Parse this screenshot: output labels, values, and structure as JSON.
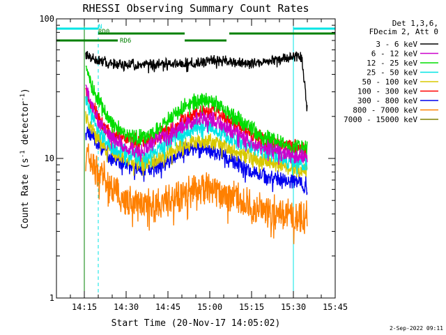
{
  "chart_data": {
    "type": "line",
    "title": "RHESSI Observing Summary Count Rates",
    "xlabel": "Start Time (20-Nov-17 14:05:02)",
    "ylabel": "Count Rate (s⁻¹ detector⁻¹)",
    "ylabel_parts": [
      "Count Rate (s",
      "-1",
      " detector",
      "-1",
      ")"
    ],
    "y_scale": "log",
    "ylim": [
      1,
      100
    ],
    "xlim_minutes": [
      0,
      100
    ],
    "x_tick_labels": [
      "14:15",
      "14:30",
      "14:45",
      "15:00",
      "15:15",
      "15:30",
      "15:45"
    ],
    "x_tick_minutes": [
      10,
      25,
      40,
      55,
      70,
      85,
      100
    ],
    "y_tick_labels": [
      "1",
      "10",
      "100"
    ],
    "y_tick_values": [
      1,
      10,
      100
    ],
    "legend_position": "right",
    "legend_header": [
      "Det 1,3,6,",
      "FDecim 2, Att 0"
    ],
    "footer_date": "2-Sep-2022 09:11",
    "flags": [
      {
        "name": "N",
        "color": "#00e5e5",
        "segments": [
          [
            0,
            15
          ],
          [
            85,
            100
          ]
        ],
        "label_at": 15
      },
      {
        "name": "RD0",
        "color": "#008000",
        "segments": [
          [
            15,
            46
          ],
          [
            62,
            100
          ]
        ],
        "label_at": 15
      },
      {
        "name": "RD6",
        "color": "#008000",
        "segments": [
          [
            0,
            22
          ],
          [
            46,
            61
          ]
        ],
        "label_at": 22
      }
    ],
    "vlines": [
      {
        "t": 0,
        "color": "#00e5e5",
        "style": "solid"
      },
      {
        "t": 10,
        "color": "#008000",
        "style": "solid"
      },
      {
        "t": 15,
        "color": "#00e5e5",
        "style": "dashed"
      },
      {
        "t": 85,
        "color": "#00e5e5",
        "style": "solid"
      },
      {
        "t": 100,
        "color": "#00e5e5",
        "style": "dashed"
      }
    ],
    "series": [
      {
        "name": "3 - 6 keV",
        "color": "#000000",
        "points": [
          [
            10.5,
            55
          ],
          [
            13,
            52
          ],
          [
            16,
            50
          ],
          [
            20,
            48
          ],
          [
            25,
            47
          ],
          [
            30,
            47
          ],
          [
            35,
            47
          ],
          [
            40,
            48
          ],
          [
            45,
            48
          ],
          [
            50,
            48
          ],
          [
            55,
            50
          ],
          [
            60,
            50
          ],
          [
            65,
            49
          ],
          [
            70,
            48
          ],
          [
            75,
            49
          ],
          [
            80,
            51
          ],
          [
            85,
            54
          ],
          [
            88,
            53
          ],
          [
            90,
            22
          ]
        ]
      },
      {
        "name": "6 - 12 keV",
        "color": "#cc00cc",
        "points": [
          [
            10.5,
            32
          ],
          [
            13,
            24
          ],
          [
            16,
            17
          ],
          [
            20,
            14
          ],
          [
            25,
            12
          ],
          [
            30,
            11
          ],
          [
            35,
            13
          ],
          [
            40,
            15
          ],
          [
            45,
            17
          ],
          [
            50,
            19
          ],
          [
            55,
            19
          ],
          [
            60,
            17
          ],
          [
            65,
            15
          ],
          [
            70,
            13
          ],
          [
            75,
            12
          ],
          [
            80,
            11
          ],
          [
            85,
            10.5
          ],
          [
            90,
            10
          ]
        ]
      },
      {
        "name": "12 - 25 keV",
        "color": "#00dd00",
        "points": [
          [
            10.5,
            45
          ],
          [
            13,
            32
          ],
          [
            16,
            24
          ],
          [
            20,
            18
          ],
          [
            25,
            15
          ],
          [
            30,
            14
          ],
          [
            35,
            15
          ],
          [
            40,
            19
          ],
          [
            45,
            23
          ],
          [
            50,
            26
          ],
          [
            55,
            26
          ],
          [
            60,
            23
          ],
          [
            65,
            19
          ],
          [
            70,
            16
          ],
          [
            75,
            14
          ],
          [
            80,
            13
          ],
          [
            85,
            12
          ],
          [
            90,
            12
          ]
        ]
      },
      {
        "name": "25 - 50 keV",
        "color": "#00e5e5",
        "points": [
          [
            10.5,
            26
          ],
          [
            13,
            20
          ],
          [
            16,
            15
          ],
          [
            20,
            12
          ],
          [
            25,
            11
          ],
          [
            30,
            10
          ],
          [
            35,
            11
          ],
          [
            40,
            13
          ],
          [
            45,
            15
          ],
          [
            50,
            17
          ],
          [
            55,
            17
          ],
          [
            60,
            15
          ],
          [
            65,
            13
          ],
          [
            70,
            12
          ],
          [
            75,
            11
          ],
          [
            80,
            10
          ],
          [
            85,
            9.5
          ],
          [
            90,
            9
          ]
        ]
      },
      {
        "name": "50 - 100 keV",
        "color": "#d8c800",
        "points": [
          [
            10.5,
            20
          ],
          [
            13,
            16
          ],
          [
            16,
            13
          ],
          [
            20,
            11
          ],
          [
            25,
            10
          ],
          [
            30,
            9
          ],
          [
            35,
            9.5
          ],
          [
            40,
            11
          ],
          [
            45,
            12.5
          ],
          [
            50,
            13.5
          ],
          [
            55,
            13.5
          ],
          [
            60,
            12.5
          ],
          [
            65,
            11
          ],
          [
            70,
            10
          ],
          [
            75,
            9.5
          ],
          [
            80,
            9
          ],
          [
            85,
            8.5
          ],
          [
            90,
            8.5
          ]
        ]
      },
      {
        "name": "100 - 300 keV",
        "color": "#ff0000",
        "points": [
          [
            10.5,
            30
          ],
          [
            13,
            24
          ],
          [
            16,
            18
          ],
          [
            20,
            15
          ],
          [
            25,
            14
          ],
          [
            30,
            13
          ],
          [
            35,
            14
          ],
          [
            40,
            16
          ],
          [
            45,
            18.5
          ],
          [
            50,
            21
          ],
          [
            55,
            22
          ],
          [
            60,
            20
          ],
          [
            65,
            17
          ],
          [
            70,
            15
          ],
          [
            75,
            13.5
          ],
          [
            80,
            12.5
          ],
          [
            85,
            12
          ],
          [
            90,
            12
          ]
        ]
      },
      {
        "name": "300 - 800 keV",
        "color": "#0000ee",
        "points": [
          [
            10.5,
            17
          ],
          [
            13,
            14
          ],
          [
            16,
            12
          ],
          [
            20,
            10
          ],
          [
            25,
            9
          ],
          [
            30,
            8.5
          ],
          [
            35,
            8.5
          ],
          [
            40,
            9.5
          ],
          [
            45,
            11
          ],
          [
            50,
            12
          ],
          [
            55,
            11.5
          ],
          [
            60,
            10.5
          ],
          [
            65,
            9
          ],
          [
            70,
            8
          ],
          [
            75,
            7.5
          ],
          [
            80,
            7
          ],
          [
            85,
            7
          ],
          [
            90,
            6.5
          ]
        ]
      },
      {
        "name": "800 - 7000 keV",
        "color": "#ff8000",
        "points": [
          [
            10.5,
            11
          ],
          [
            13,
            9
          ],
          [
            16,
            7.5
          ],
          [
            20,
            6
          ],
          [
            25,
            5
          ],
          [
            30,
            4.6
          ],
          [
            35,
            4.6
          ],
          [
            40,
            5
          ],
          [
            45,
            5.5
          ],
          [
            50,
            6
          ],
          [
            55,
            6
          ],
          [
            60,
            5.6
          ],
          [
            65,
            5
          ],
          [
            70,
            4.5
          ],
          [
            75,
            4.2
          ],
          [
            80,
            4
          ],
          [
            85,
            3.8
          ],
          [
            90,
            3.8
          ]
        ]
      },
      {
        "name": "7000 - 15000 keV",
        "color": "#808000",
        "points": []
      }
    ]
  }
}
